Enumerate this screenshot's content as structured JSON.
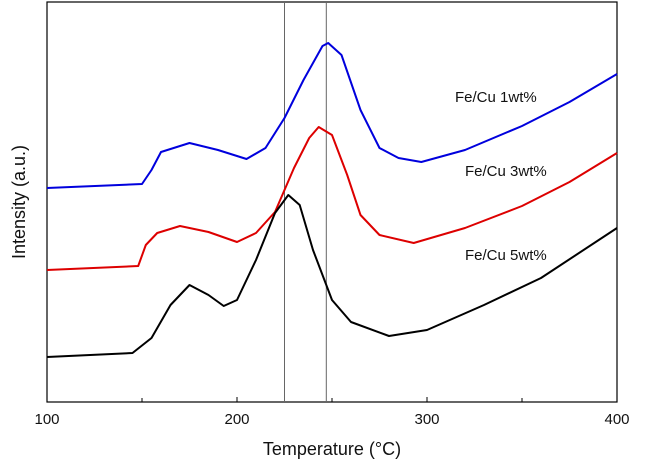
{
  "chart_data": {
    "type": "line",
    "xlabel": "Temperature (°C)",
    "ylabel": "Intensity (a.u.)",
    "xlim": [
      100,
      400
    ],
    "xticks": [
      100,
      200,
      300,
      400
    ],
    "xminor": [
      150,
      250,
      350
    ],
    "ylim": [
      0,
      100
    ],
    "vlines": [
      225,
      247
    ],
    "series": [
      {
        "name": "Fe/Cu 1wt%",
        "color": "#0000dd",
        "x": [
          100,
          150,
          155,
          160,
          175,
          190,
          205,
          215,
          225,
          235,
          245,
          248,
          255,
          265,
          275,
          285,
          297,
          320,
          350,
          375,
          400
        ],
        "values": [
          53.5,
          54.5,
          58,
          62.5,
          64.75,
          63,
          60.75,
          63.5,
          71,
          80.5,
          89,
          89.75,
          86.75,
          73,
          63.5,
          61,
          60,
          63,
          69,
          75,
          82
        ]
      },
      {
        "name": "Fe/Cu 3wt%",
        "color": "#dd0000",
        "x": [
          100,
          148,
          152,
          158,
          170,
          185,
          200,
          210,
          220,
          230,
          238,
          243,
          250,
          258,
          265,
          275,
          293,
          320,
          350,
          375,
          400
        ],
        "values": [
          33,
          34,
          39.25,
          42.25,
          44,
          42.5,
          40,
          42.25,
          47.5,
          58.5,
          66,
          68.75,
          66.75,
          56.75,
          46.75,
          41.75,
          39.75,
          43.5,
          49,
          55,
          62.25
        ]
      },
      {
        "name": "Fe/Cu 5wt%",
        "color": "#000000",
        "x": [
          100,
          145,
          155,
          165,
          175,
          185,
          193,
          200,
          210,
          220,
          227,
          233,
          240,
          250,
          260,
          280,
          300,
          330,
          360,
          400
        ],
        "values": [
          11.25,
          12.25,
          16,
          24.25,
          29.25,
          26.75,
          24,
          25.5,
          35.5,
          47.25,
          51.75,
          49.25,
          38,
          25.5,
          20,
          16.5,
          18,
          24.25,
          31,
          43.5
        ]
      }
    ]
  }
}
